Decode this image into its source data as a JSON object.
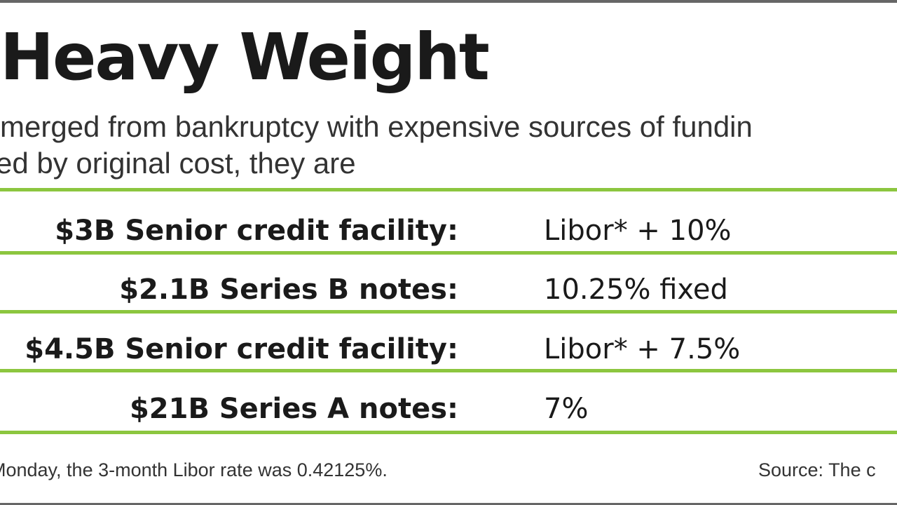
{
  "chart_data": {
    "type": "table",
    "title": "Heavy Weight",
    "subtitle_lines": [
      "merged from bankruptcy with expensive sources of fundin",
      "ed by original cost, they are"
    ],
    "rows": [
      {
        "label": "$3B Senior credit facility:",
        "value": "Libor* + 10%"
      },
      {
        "label": "$2.1B Series B notes:",
        "value": "10.25% fixed"
      },
      {
        "label": "$4.5B Senior credit facility:",
        "value": "Libor* + 7.5%"
      },
      {
        "label": "$21B Series A notes:",
        "value": "7%"
      }
    ],
    "footnote": "Monday, the 3-month Libor rate was 0.42125%.",
    "source": "Source: The c"
  },
  "colors": {
    "accent_rule": "#8cc63f",
    "frame": "#666666",
    "text": "#1a1a1a"
  }
}
